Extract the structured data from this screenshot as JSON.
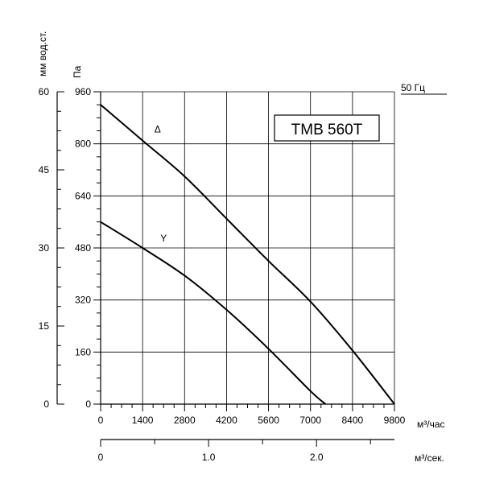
{
  "chart_data": {
    "type": "line",
    "model_label": "TMB 560T",
    "frequency_label": "50 Гц",
    "x_axis": {
      "label": "м³/час",
      "range": [
        0,
        9800
      ],
      "ticks": [
        0,
        1400,
        2800,
        4200,
        5600,
        7000,
        8400,
        9800
      ],
      "tick_labels": [
        "0",
        "1400",
        "2800",
        "4200",
        "5600",
        "7000",
        "8400",
        "9800"
      ]
    },
    "x2_axis": {
      "label": "м³/сек.",
      "range": [
        0,
        2.722
      ],
      "tick_labels": [
        "0",
        "1.0",
        "2.0"
      ],
      "tick_values": [
        0,
        1.0,
        2.0
      ]
    },
    "y_axis": {
      "label": "Па",
      "range": [
        0,
        960
      ],
      "ticks": [
        0,
        160,
        320,
        480,
        640,
        800,
        960
      ],
      "tick_labels": [
        "0",
        "160",
        "320",
        "480",
        "640",
        "800",
        "960"
      ]
    },
    "y2_axis": {
      "label": "мм вод.ст.",
      "range": [
        0,
        60
      ],
      "ticks": [
        0,
        15,
        30,
        45,
        60
      ],
      "tick_labels": [
        "0",
        "15",
        "30",
        "45",
        "60"
      ]
    },
    "grid": true,
    "series": [
      {
        "name": "Δ",
        "x": [
          0,
          1400,
          2800,
          4200,
          5600,
          7000,
          8400,
          9800
        ],
        "y": [
          920,
          810,
          700,
          570,
          440,
          315,
          165,
          0
        ]
      },
      {
        "name": "Y",
        "x": [
          0,
          1400,
          2800,
          4200,
          5600,
          7000,
          7500
        ],
        "y": [
          560,
          480,
          395,
          290,
          170,
          40,
          0
        ]
      }
    ]
  }
}
